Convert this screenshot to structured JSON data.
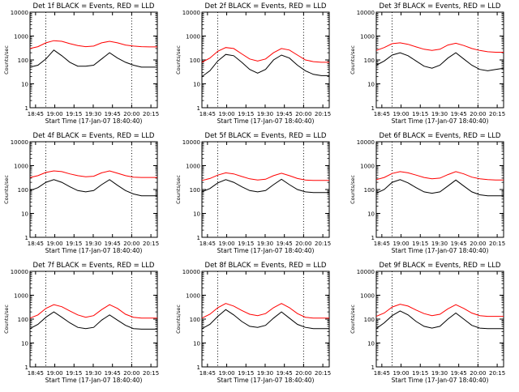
{
  "page": {
    "background": "#ffffff"
  },
  "colors": {
    "events": "#000000",
    "lld": "#ff0000",
    "axis": "#000000"
  },
  "chart_data": [
    {
      "type": "line",
      "title": "Det 1f BLACK = Events, RED = LLD",
      "xlabel": "Start Time (17-Jan-07 18:40:40)",
      "ylabel": "Counts/sec",
      "xtick_labels": [
        "18:45",
        "19:00",
        "19:15",
        "19:30",
        "19:45",
        "20:00",
        "20:15"
      ],
      "xlim": [
        "18:40:40",
        "20:20:00"
      ],
      "ylim": [
        1,
        10000
      ],
      "yscale": "log",
      "ytick_labels": [
        "1",
        "10",
        "100",
        "1000",
        "10000"
      ],
      "vlines": [
        "18:53",
        "20:00"
      ],
      "grid": false,
      "series": [
        {
          "color": "#ff0000",
          "values": [
            300,
            360,
            520,
            640,
            600,
            480,
            400,
            360,
            380,
            520,
            600,
            520,
            420,
            380,
            360,
            350,
            350
          ]
        },
        {
          "color": "#000000",
          "values": [
            50,
            60,
            110,
            260,
            150,
            80,
            55,
            55,
            60,
            110,
            200,
            120,
            80,
            60,
            50,
            50,
            50
          ]
        }
      ]
    },
    {
      "type": "line",
      "title": "Det 2f BLACK = Events, RED = LLD",
      "xlabel": "Start Time (17-Jan-07 18:40:40)",
      "ylabel": "Counts/sec",
      "xtick_labels": [
        "18:45",
        "19:00",
        "19:15",
        "19:30",
        "19:45",
        "20:00",
        "20:15"
      ],
      "xlim": [
        "18:40:40",
        "20:20:00"
      ],
      "ylim": [
        1,
        10000
      ],
      "yscale": "log",
      "ytick_labels": [
        "1",
        "10",
        "100",
        "1000",
        "10000"
      ],
      "vlines": [
        "18:53",
        "20:00"
      ],
      "grid": false,
      "series": [
        {
          "color": "#ff0000",
          "values": [
            80,
            120,
            230,
            330,
            300,
            180,
            110,
            90,
            110,
            200,
            300,
            260,
            160,
            100,
            85,
            80,
            80
          ]
        },
        {
          "color": "#000000",
          "values": [
            20,
            35,
            90,
            170,
            150,
            80,
            40,
            28,
            40,
            100,
            160,
            120,
            60,
            35,
            25,
            22,
            22
          ]
        }
      ]
    },
    {
      "type": "line",
      "title": "Det 3f BLACK = Events, RED = LLD",
      "xlabel": "Start Time (17-Jan-07 18:40:40)",
      "ylabel": "Counts/sec",
      "xtick_labels": [
        "18:45",
        "19:00",
        "19:15",
        "19:30",
        "19:45",
        "20:00",
        "20:15"
      ],
      "xlim": [
        "18:40:40",
        "20:20:00"
      ],
      "ylim": [
        1,
        10000
      ],
      "yscale": "log",
      "ytick_labels": [
        "1",
        "10",
        "100",
        "1000",
        "10000"
      ],
      "vlines": [
        "18:53",
        "20:00"
      ],
      "grid": false,
      "series": [
        {
          "color": "#ff0000",
          "values": [
            250,
            330,
            480,
            520,
            450,
            350,
            280,
            250,
            280,
            420,
            500,
            400,
            300,
            250,
            220,
            210,
            210
          ]
        },
        {
          "color": "#000000",
          "values": [
            60,
            90,
            160,
            200,
            150,
            90,
            55,
            45,
            60,
            120,
            200,
            110,
            60,
            40,
            35,
            40,
            45
          ]
        }
      ]
    },
    {
      "type": "line",
      "title": "Det 4f BLACK = Events, RED = LLD",
      "xlabel": "Start Time (17-Jan-07 18:40:40)",
      "ylabel": "Counts/sec",
      "xtick_labels": [
        "18:45",
        "19:00",
        "19:15",
        "19:30",
        "19:45",
        "20:00",
        "20:15"
      ],
      "xlim": [
        "18:40:40",
        "20:20:00"
      ],
      "ylim": [
        1,
        10000
      ],
      "yscale": "log",
      "ytick_labels": [
        "1",
        "10",
        "100",
        "1000",
        "10000"
      ],
      "vlines": [
        "18:53",
        "20:00"
      ],
      "grid": false,
      "series": [
        {
          "color": "#ff0000",
          "values": [
            320,
            380,
            520,
            600,
            560,
            450,
            380,
            340,
            360,
            500,
            600,
            480,
            380,
            330,
            320,
            320,
            320
          ]
        },
        {
          "color": "#000000",
          "values": [
            90,
            120,
            200,
            260,
            200,
            130,
            90,
            80,
            90,
            160,
            260,
            150,
            90,
            65,
            55,
            55,
            55
          ]
        }
      ]
    },
    {
      "type": "line",
      "title": "Det 5f BLACK = Events, RED = LLD",
      "xlabel": "Start Time (17-Jan-07 18:40:40)",
      "ylabel": "Counts/sec",
      "xtick_labels": [
        "18:45",
        "19:00",
        "19:15",
        "19:30",
        "19:45",
        "20:00",
        "20:15"
      ],
      "xlim": [
        "18:40:40",
        "20:20:00"
      ],
      "ylim": [
        1,
        10000
      ],
      "yscale": "log",
      "ytick_labels": [
        "1",
        "10",
        "100",
        "1000",
        "10000"
      ],
      "vlines": [
        "18:53",
        "20:00"
      ],
      "grid": false,
      "series": [
        {
          "color": "#ff0000",
          "values": [
            240,
            290,
            400,
            500,
            450,
            350,
            280,
            250,
            270,
            380,
            480,
            380,
            290,
            250,
            240,
            240,
            240
          ]
        },
        {
          "color": "#000000",
          "values": [
            80,
            110,
            190,
            260,
            200,
            130,
            90,
            80,
            90,
            160,
            270,
            160,
            100,
            80,
            75,
            75,
            75
          ]
        }
      ]
    },
    {
      "type": "line",
      "title": "Det 6f BLACK = Events, RED = LLD",
      "xlabel": "Start Time (17-Jan-07 18:40:40)",
      "ylabel": "Counts/sec",
      "xtick_labels": [
        "18:45",
        "19:00",
        "19:15",
        "19:30",
        "19:45",
        "20:00",
        "20:15"
      ],
      "xlim": [
        "18:40:40",
        "20:20:00"
      ],
      "ylim": [
        1,
        10000
      ],
      "yscale": "log",
      "ytick_labels": [
        "1",
        "10",
        "100",
        "1000",
        "10000"
      ],
      "vlines": [
        "18:53",
        "20:00"
      ],
      "grid": false,
      "series": [
        {
          "color": "#ff0000",
          "values": [
            260,
            320,
            470,
            560,
            500,
            400,
            320,
            280,
            300,
            420,
            560,
            450,
            330,
            280,
            260,
            250,
            250
          ]
        },
        {
          "color": "#000000",
          "values": [
            70,
            100,
            200,
            260,
            190,
            120,
            80,
            70,
            80,
            140,
            250,
            140,
            80,
            60,
            55,
            55,
            55
          ]
        }
      ]
    },
    {
      "type": "line",
      "title": "Det 7f BLACK = Events, RED = LLD",
      "xlabel": "Start Time (17-Jan-07 18:40:40)",
      "ylabel": "Counts/sec",
      "xtick_labels": [
        "18:45",
        "19:00",
        "19:15",
        "19:30",
        "19:45",
        "20:00",
        "20:15"
      ],
      "xlim": [
        "18:40:40",
        "20:20:00"
      ],
      "ylim": [
        1,
        10000
      ],
      "yscale": "log",
      "ytick_labels": [
        "1",
        "10",
        "100",
        "1000",
        "10000"
      ],
      "vlines": [
        "18:53",
        "20:00"
      ],
      "grid": false,
      "series": [
        {
          "color": "#ff0000",
          "values": [
            110,
            150,
            280,
            400,
            330,
            220,
            150,
            120,
            140,
            250,
            400,
            280,
            160,
            120,
            110,
            110,
            110
          ]
        },
        {
          "color": "#000000",
          "values": [
            40,
            60,
            120,
            200,
            120,
            70,
            45,
            40,
            45,
            90,
            150,
            90,
            55,
            40,
            38,
            38,
            38
          ]
        }
      ]
    },
    {
      "type": "line",
      "title": "Det 8f BLACK = Events, RED = LLD",
      "xlabel": "Start Time (17-Jan-07 18:40:40)",
      "ylabel": "Counts/sec",
      "xtick_labels": [
        "18:45",
        "19:00",
        "19:15",
        "19:30",
        "19:45",
        "20:00",
        "20:15"
      ],
      "xlim": [
        "18:40:40",
        "20:20:00"
      ],
      "ylim": [
        1,
        10000
      ],
      "yscale": "log",
      "ytick_labels": [
        "1",
        "10",
        "100",
        "1000",
        "10000"
      ],
      "vlines": [
        "18:53",
        "20:00"
      ],
      "grid": false,
      "series": [
        {
          "color": "#ff0000",
          "values": [
            110,
            160,
            300,
            450,
            350,
            230,
            160,
            140,
            170,
            300,
            450,
            300,
            170,
            120,
            110,
            110,
            110
          ]
        },
        {
          "color": "#000000",
          "values": [
            40,
            60,
            130,
            250,
            150,
            80,
            50,
            45,
            55,
            110,
            200,
            110,
            60,
            45,
            40,
            40,
            40
          ]
        }
      ]
    },
    {
      "type": "line",
      "title": "Det 9f BLACK = Events, RED = LLD",
      "xlabel": "Start Time (17-Jan-07 18:40:40)",
      "ylabel": "Counts/sec",
      "xtick_labels": [
        "18:45",
        "19:00",
        "19:15",
        "19:30",
        "19:45",
        "20:00",
        "20:15"
      ],
      "xlim": [
        "18:40:40",
        "20:20:00"
      ],
      "ylim": [
        1,
        10000
      ],
      "yscale": "log",
      "ytick_labels": [
        "1",
        "10",
        "100",
        "1000",
        "10000"
      ],
      "vlines": [
        "18:53",
        "20:00"
      ],
      "grid": false,
      "series": [
        {
          "color": "#ff0000",
          "values": [
            130,
            180,
            320,
            420,
            350,
            240,
            170,
            140,
            160,
            270,
            400,
            280,
            180,
            140,
            130,
            130,
            130
          ]
        },
        {
          "color": "#000000",
          "values": [
            40,
            70,
            140,
            220,
            150,
            80,
            50,
            42,
            50,
            100,
            180,
            100,
            55,
            42,
            40,
            40,
            40
          ]
        }
      ]
    }
  ]
}
